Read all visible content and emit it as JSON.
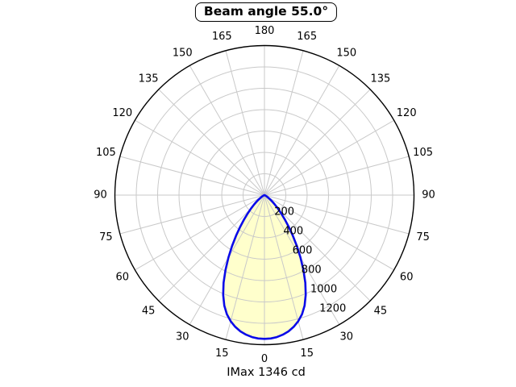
{
  "chart_data": {
    "type": "polar-line",
    "title": "Beam angle 55.0°",
    "caption": "IMax 1346 cd",
    "beam_angle_deg": 55.0,
    "imax_cd": 1346,
    "r_unit": "cd",
    "r_axis": {
      "min": 0,
      "max": 1400,
      "tick_step": 200,
      "tick_labels": [
        "200",
        "400",
        "600",
        "800",
        "1000",
        "1200"
      ],
      "label_position_deg_from_bottom": 25
    },
    "theta_axis": {
      "zero_location": "bottom",
      "tick_step_deg": 15,
      "labels_deg": [
        0,
        15,
        30,
        45,
        60,
        75,
        90,
        105,
        120,
        135,
        150,
        165,
        180
      ],
      "mirrored_left_right": true
    },
    "grid": {
      "visible": true
    },
    "legend": {
      "visible": false
    },
    "colors": {
      "curve": "#0b0be8",
      "fill": "#ffffcc",
      "grid": "#c9c9c9",
      "outer_circle": "#000000",
      "text": "#000000",
      "background": "#ffffff"
    },
    "series": [
      {
        "name": "luminous-intensity-profile",
        "symmetric": true,
        "angles_deg": [
          0,
          2.5,
          5,
          7.5,
          10,
          12.5,
          15,
          17.5,
          20,
          22.5,
          25,
          27.5,
          30,
          32.5,
          35,
          37.5,
          40,
          42.5,
          45,
          47.5,
          50,
          52.5,
          55,
          57.5,
          60,
          62.5,
          65,
          67.5,
          70,
          72.5,
          75,
          77.5,
          80,
          82.5,
          85,
          87.5,
          90
        ],
        "intensity_cd": [
          1346,
          1343,
          1334,
          1318,
          1295,
          1263,
          1222,
          1170,
          1100,
          1010,
          905,
          790,
          675,
          565,
          462,
          372,
          295,
          230,
          178,
          135,
          100,
          73,
          52,
          36,
          24,
          16,
          10,
          6,
          4,
          2,
          1,
          1,
          0,
          0,
          0,
          0,
          0
        ]
      }
    ]
  }
}
